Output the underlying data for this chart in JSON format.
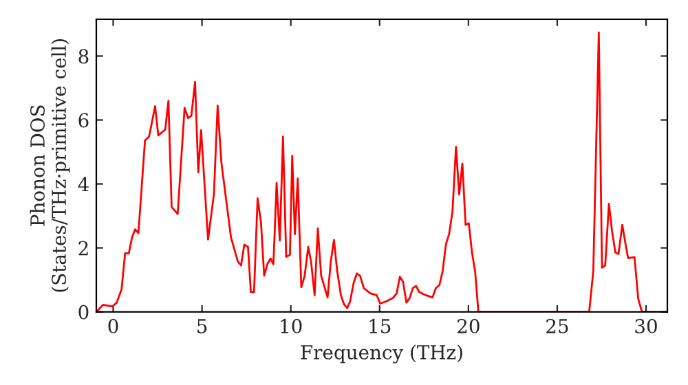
{
  "chart_data": {
    "type": "line",
    "xlabel": "Frequency (THz)",
    "ylabel": "Phonon DOS\n(States/THz·primitive cell)",
    "xlim": [
      -0.95,
      31.2
    ],
    "ylim": [
      0,
      9.15
    ],
    "xticks": [
      0,
      5,
      10,
      15,
      20,
      25,
      30
    ],
    "yticks": [
      0,
      2,
      4,
      6,
      8
    ],
    "grid": false,
    "legend": false,
    "series": [
      {
        "color": "#ff0000",
        "x": [
          -0.95,
          -0.57,
          -0.05,
          0.2,
          0.47,
          0.67,
          0.88,
          1.06,
          1.24,
          1.42,
          1.79,
          2.02,
          2.36,
          2.54,
          2.93,
          3.11,
          3.29,
          3.63,
          4.02,
          4.22,
          4.4,
          4.61,
          4.79,
          4.95,
          5.34,
          5.67,
          5.88,
          6.09,
          6.63,
          7.02,
          7.2,
          7.38,
          7.59,
          7.75,
          7.93,
          8.13,
          8.32,
          8.5,
          8.68,
          8.86,
          9.02,
          9.2,
          9.38,
          9.56,
          9.74,
          9.95,
          10.08,
          10.23,
          10.39,
          10.59,
          10.78,
          10.98,
          11.14,
          11.34,
          11.52,
          11.71,
          12.07,
          12.25,
          12.43,
          12.61,
          12.82,
          13.0,
          13.18,
          13.34,
          13.54,
          13.72,
          13.9,
          14.11,
          14.47,
          14.84,
          15.03,
          15.39,
          15.78,
          15.96,
          16.14,
          16.32,
          16.51,
          16.69,
          16.87,
          17.05,
          17.23,
          17.6,
          17.98,
          18.16,
          18.37,
          18.55,
          18.73,
          18.91,
          19.1,
          19.3,
          19.48,
          19.66,
          19.84,
          20.02,
          20.2,
          20.38,
          20.56,
          26.8,
          27.03,
          27.34,
          27.52,
          27.7,
          27.91,
          28.09,
          28.27,
          28.45,
          28.66,
          28.84,
          28.99,
          29.35,
          29.56,
          29.77,
          31.1
        ],
        "values": [
          0,
          0.22,
          0.17,
          0.29,
          0.7,
          1.83,
          1.83,
          2.33,
          2.58,
          2.46,
          5.36,
          5.48,
          6.43,
          5.52,
          5.7,
          6.6,
          3.28,
          3.06,
          6.38,
          6.06,
          6.13,
          7.19,
          4.36,
          5.68,
          2.26,
          3.67,
          6.45,
          4.68,
          2.33,
          1.57,
          1.45,
          2.1,
          2.03,
          0.62,
          0.62,
          3.55,
          2.8,
          1.13,
          1.49,
          1.67,
          1.49,
          4.03,
          2.23,
          5.48,
          1.72,
          1.78,
          4.88,
          2.43,
          4.17,
          0.77,
          1.13,
          2.03,
          1.57,
          0.52,
          2.61,
          1.13,
          0.45,
          1.57,
          2.25,
          1.28,
          0.52,
          0.23,
          0.12,
          0.33,
          0.91,
          1.2,
          1.13,
          0.74,
          0.58,
          0.52,
          0.26,
          0.33,
          0.45,
          0.58,
          1.1,
          0.94,
          0.29,
          0.43,
          0.74,
          0.81,
          0.62,
          0.52,
          0.45,
          0.74,
          0.84,
          1.28,
          2.1,
          2.43,
          3.12,
          5.16,
          3.67,
          4.64,
          2.72,
          2.77,
          1.86,
          1.25,
          0,
          0,
          1.28,
          8.74,
          1.38,
          1.45,
          3.38,
          2.51,
          1.86,
          1.81,
          2.72,
          2.14,
          1.68,
          1.71,
          0.41,
          0,
          0
        ]
      }
    ]
  }
}
